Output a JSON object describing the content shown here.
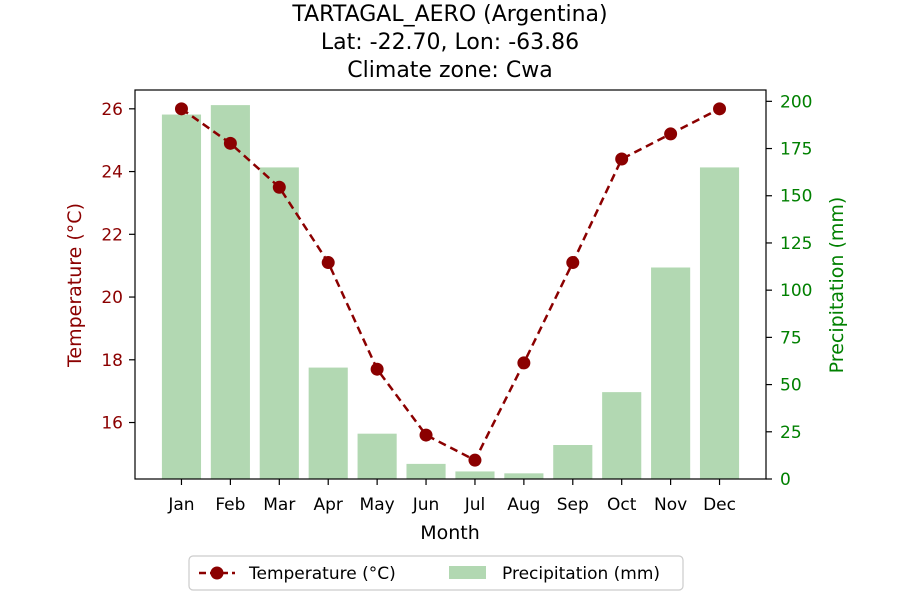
{
  "chart_data": {
    "type": "bar+line",
    "title": [
      "TARTAGAL_AERO (Argentina)",
      "Lat: -22.70, Lon: -63.86",
      "Climate zone: Cwa"
    ],
    "xlabel": "Month",
    "ylabel_left": "Temperature (°C)",
    "ylabel_right": "Precipitation (mm)",
    "categories": [
      "Jan",
      "Feb",
      "Mar",
      "Apr",
      "May",
      "Jun",
      "Jul",
      "Aug",
      "Sep",
      "Oct",
      "Nov",
      "Dec"
    ],
    "temperature": {
      "name": "Temperature (°C)",
      "values": [
        26.0,
        24.9,
        23.5,
        21.1,
        17.7,
        15.6,
        14.8,
        17.9,
        21.1,
        24.4,
        25.2,
        26.0
      ],
      "color": "#8b0000"
    },
    "precipitation": {
      "name": "Precipitation (mm)",
      "values": [
        193,
        198,
        165,
        59,
        24,
        8,
        4,
        3,
        18,
        46,
        112,
        165
      ],
      "color": "#b2d8b2"
    },
    "ylim_left": [
      14.2,
      26.6
    ],
    "yticks_left": [
      16,
      18,
      20,
      22,
      24,
      26
    ],
    "ylim_right": [
      0,
      206
    ],
    "yticks_right": [
      0,
      25,
      50,
      75,
      100,
      125,
      150,
      175,
      200
    ],
    "left_axis_color": "#8b0000",
    "right_axis_color": "#008000",
    "legend_placement": "bottom-center",
    "grid": false
  }
}
